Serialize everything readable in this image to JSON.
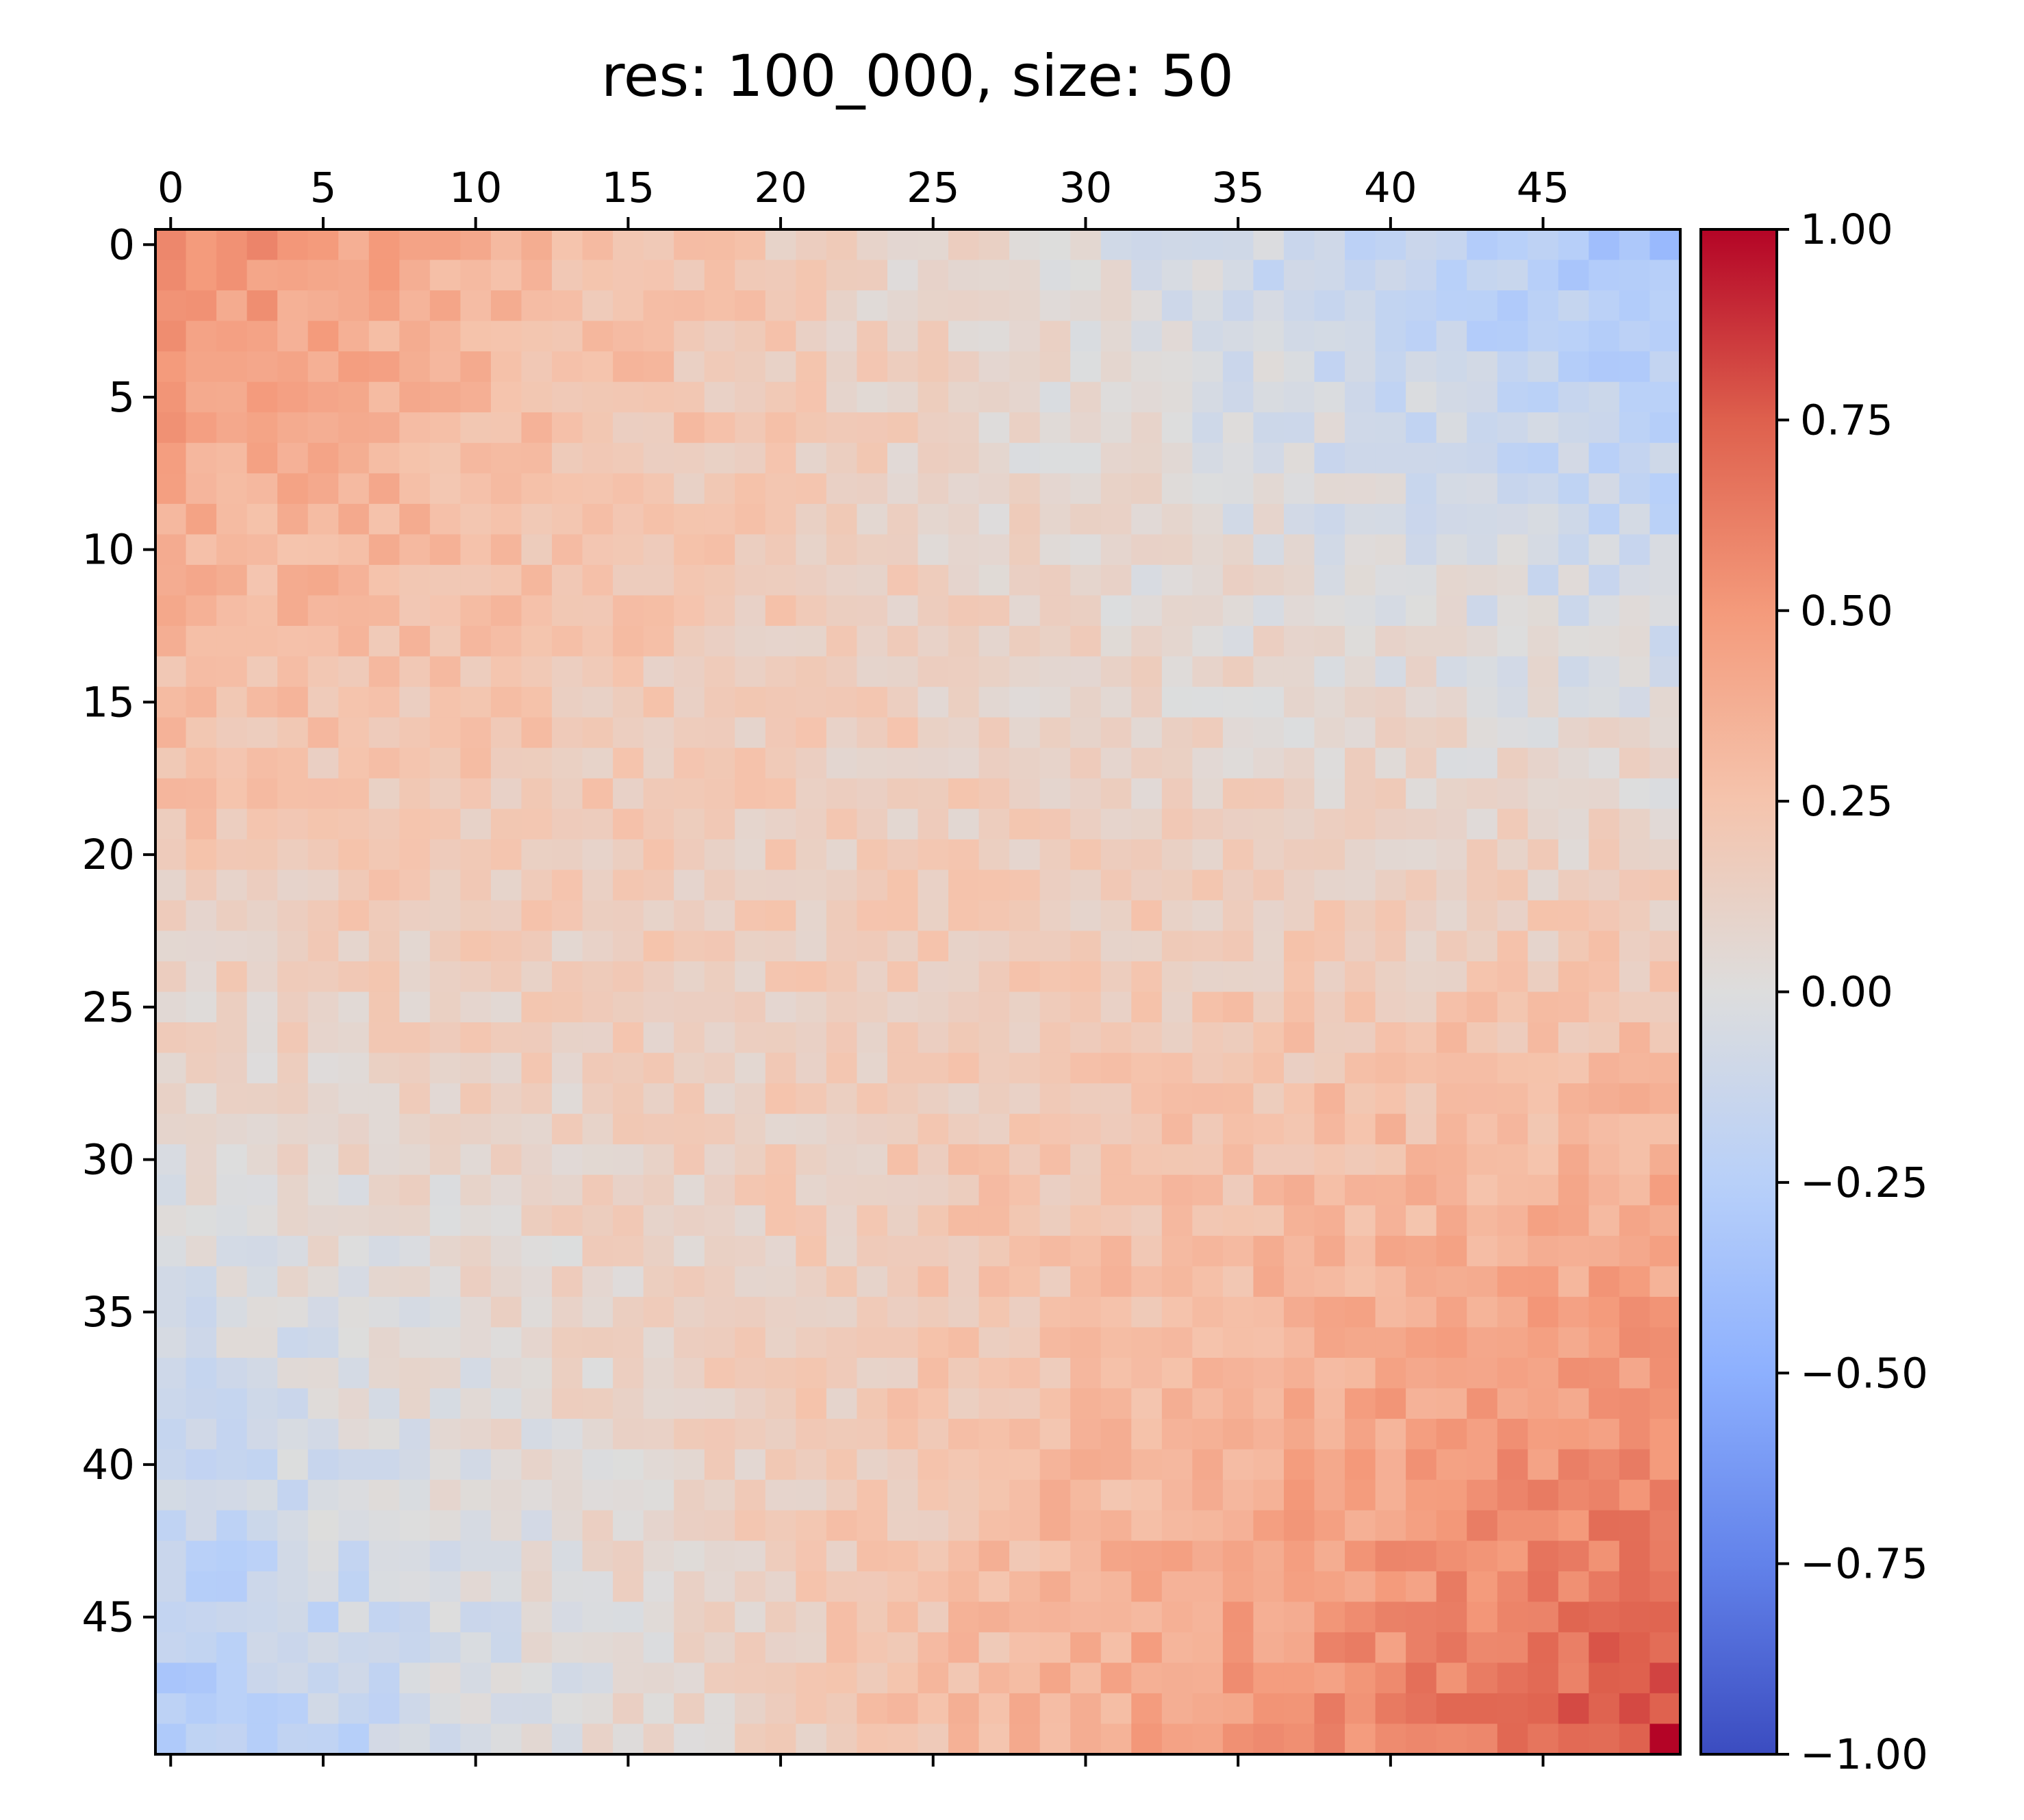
{
  "chart_data": {
    "type": "heatmap",
    "title": "res: 100_000, size: 50",
    "xlabel": "",
    "ylabel": "",
    "colormap": "coolwarm",
    "vmin": -1.0,
    "vmax": 1.0,
    "x_ticks": [
      "0",
      "5",
      "10",
      "15",
      "20",
      "25",
      "30",
      "35",
      "40",
      "45"
    ],
    "y_ticks": [
      "0",
      "5",
      "10",
      "15",
      "20",
      "25",
      "30",
      "35",
      "40",
      "45"
    ],
    "colorbar_ticks": [
      "1.00",
      "0.75",
      "0.50",
      "0.25",
      "0.00",
      "−0.25",
      "−0.50",
      "−0.75",
      "−1.00"
    ],
    "colorbar_tick_values": [
      1.0,
      0.75,
      0.5,
      0.25,
      0.0,
      -0.25,
      -0.5,
      -0.75,
      -1.0
    ],
    "matrix_size": 50,
    "value_pattern": {
      "top_left": 0.55,
      "top_right": -0.35,
      "bottom_left": -0.3,
      "bottom_right": 1.0,
      "off_diagonal": 0.0,
      "noise": 0.1
    }
  }
}
